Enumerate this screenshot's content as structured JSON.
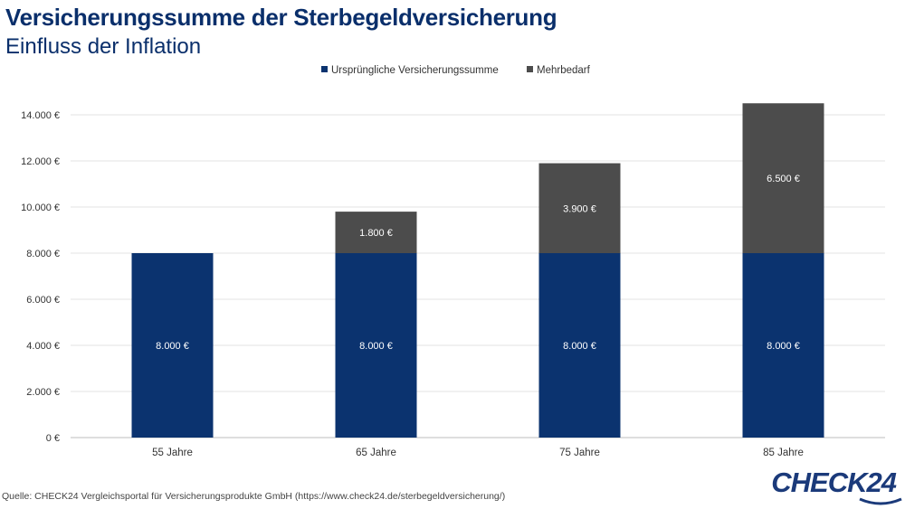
{
  "title": "Versicherungssumme der Sterbegeldversicherung",
  "subtitle": "Einfluss der Inflation",
  "source": "Quelle: CHECK24 Vergleichsportal für Versicherungsprodukte GmbH (https://www.check24.de/sterbegeldversicherung/)",
  "logo": "CHECK24",
  "colors": {
    "base": "#0b336f",
    "extra": "#4c4c4c",
    "title": "#0a2f6b"
  },
  "chart_data": {
    "type": "bar",
    "stacked": true,
    "categories": [
      "55 Jahre",
      "65 Jahre",
      "75 Jahre",
      "85 Jahre"
    ],
    "series": [
      {
        "name": "Ursprüngliche Versicherungssumme",
        "values": [
          8000,
          8000,
          8000,
          8000
        ],
        "labels": [
          "8.000 €",
          "8.000 €",
          "8.000 €",
          "8.000 €"
        ]
      },
      {
        "name": "Mehrbedarf",
        "values": [
          0,
          1800,
          3900,
          6500
        ],
        "labels": [
          "",
          "1.800 €",
          "3.900 €",
          "6.500 €"
        ]
      }
    ],
    "yticks": [
      "0 €",
      "2.000 €",
      "4.000 €",
      "6.000 €",
      "8.000 €",
      "10.000 €",
      "12.000 €",
      "14.000 €"
    ],
    "ytick_values": [
      0,
      2000,
      4000,
      6000,
      8000,
      10000,
      12000,
      14000
    ],
    "ylim": [
      0,
      14000
    ],
    "grid": true,
    "legend": "top-center"
  }
}
